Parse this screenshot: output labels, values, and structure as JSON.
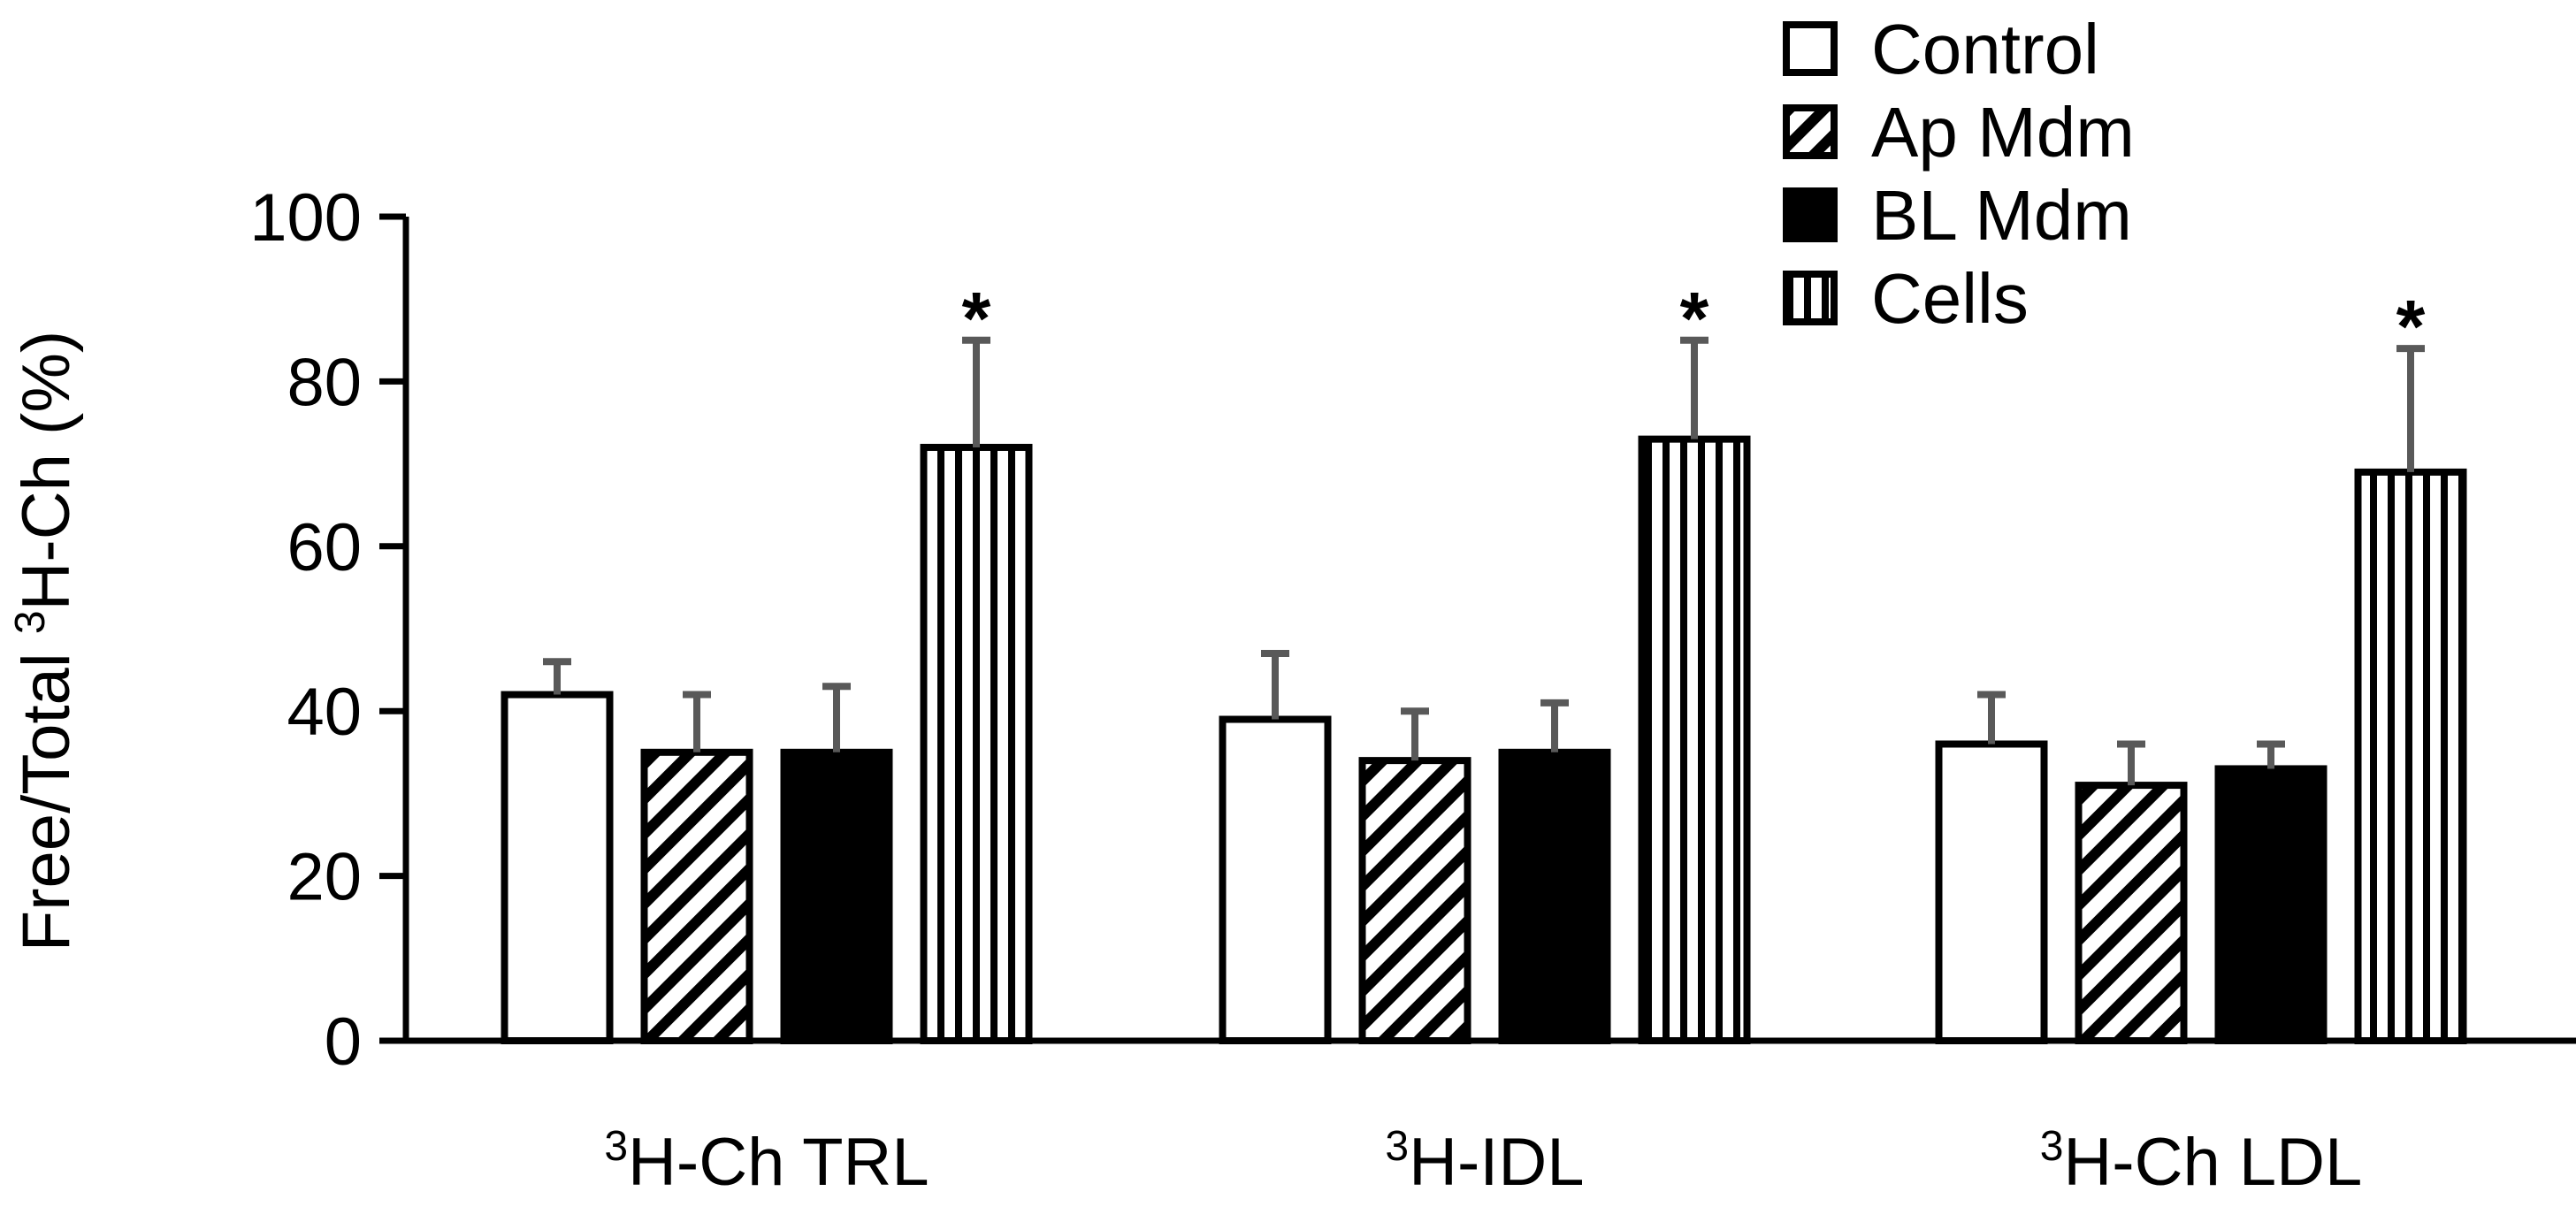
{
  "chart_data": {
    "type": "bar",
    "title": "",
    "ylabel": {
      "prefix": "Free/Total ",
      "sup": "3",
      "suffix": "H-Ch (%)"
    },
    "ylim": [
      0,
      100
    ],
    "yticks": [
      "0",
      "20",
      "40",
      "60",
      "80",
      "100"
    ],
    "grid": false,
    "legend_position": "top-right",
    "categories": [
      {
        "sup": "3",
        "label": "H-Ch TRL"
      },
      {
        "sup": "3",
        "label": "H-IDL"
      },
      {
        "sup": "3",
        "label": "H-Ch LDL"
      }
    ],
    "series": [
      {
        "name": "Control",
        "pattern": "open",
        "values": [
          42,
          39,
          36
        ],
        "errors": [
          4,
          8,
          6
        ]
      },
      {
        "name": "Ap Mdm",
        "pattern": "diagonal",
        "values": [
          35,
          34,
          31
        ],
        "errors": [
          7,
          6,
          5
        ]
      },
      {
        "name": "BL Mdm",
        "pattern": "solid",
        "values": [
          35,
          35,
          33
        ],
        "errors": [
          8,
          6,
          3
        ]
      },
      {
        "name": "Cells",
        "pattern": "vertical",
        "values": [
          72,
          73,
          69
        ],
        "errors": [
          13,
          12,
          15
        ]
      }
    ],
    "annotations": [
      {
        "category": 0,
        "series": 3,
        "text": "*"
      },
      {
        "category": 1,
        "series": 3,
        "text": "*"
      },
      {
        "category": 2,
        "series": 3,
        "text": "*"
      }
    ],
    "colors": {
      "bar_stroke": "#000000",
      "error_bar": "#595959",
      "fill_solid": "#000000",
      "fill_open": "#ffffff"
    }
  }
}
